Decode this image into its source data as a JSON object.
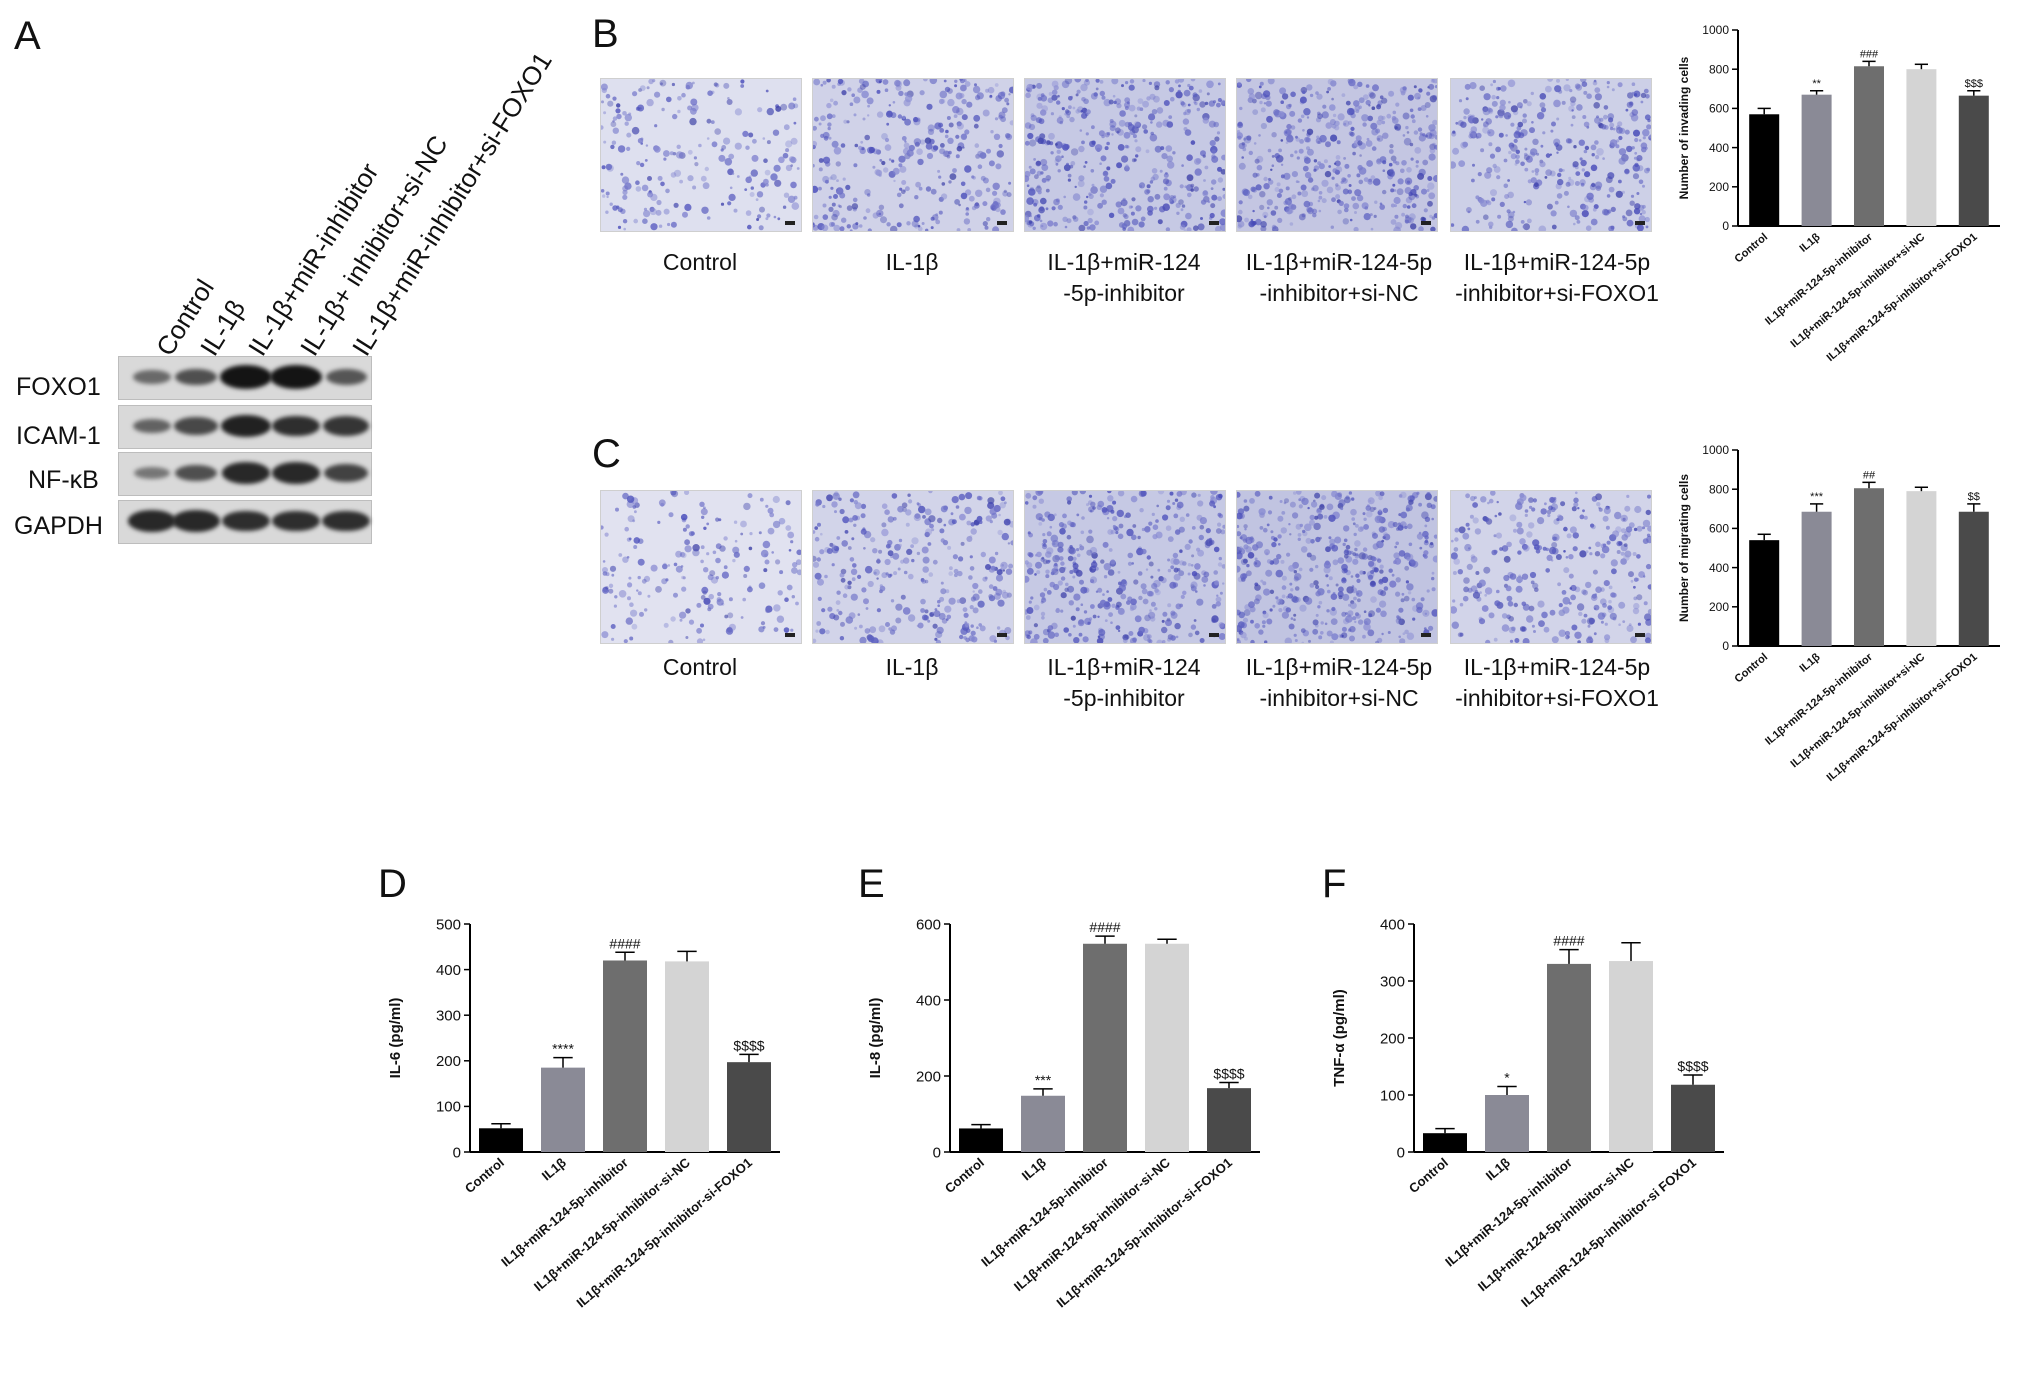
{
  "panels": {
    "A": "A",
    "B": "B",
    "C": "C",
    "D": "D",
    "E": "E",
    "F": "F"
  },
  "western_blot": {
    "lanes": [
      "Control",
      "IL-1β",
      "IL-1β+miR-inhibitor",
      "IL-1β+ inhibitor+si-NC",
      "IL-1β+miR-inhibitor+si-FOXO1"
    ],
    "proteins": [
      "FOXO1",
      "ICAM-1",
      "NF-κB",
      "GAPDH"
    ],
    "band_intensity": [
      [
        0.35,
        0.55,
        1.0,
        1.0,
        0.5
      ],
      [
        0.4,
        0.6,
        0.9,
        0.8,
        0.75
      ],
      [
        0.25,
        0.55,
        0.85,
        0.85,
        0.65
      ],
      [
        0.85,
        0.85,
        0.8,
        0.8,
        0.8
      ]
    ]
  },
  "micrograph_captions": [
    [
      "Control",
      ""
    ],
    [
      "IL-1β",
      ""
    ],
    [
      "IL-1β+miR-124",
      "-5p-inhibitor"
    ],
    [
      "IL-1β+miR-124-5p",
      "-inhibitor+si-NC"
    ],
    [
      "IL-1β+miR-124-5p",
      "-inhibitor+si-FOXO1"
    ]
  ],
  "micrograph_density": [
    0.25,
    0.55,
    0.75,
    0.8,
    0.6
  ],
  "micrograph_density_C": [
    0.2,
    0.5,
    0.75,
    0.85,
    0.5
  ],
  "chart_data": [
    {
      "id": "B",
      "type": "bar",
      "categories": [
        "Control",
        "IL1β",
        "IL1β+miR-124-5p-inhibitor",
        "IL1β+miR-124-5p-inhibitor+si-NC",
        "IL1β+miR-124-5p-inhibitor+si-FOXO1"
      ],
      "values": [
        570,
        670,
        815,
        800,
        665
      ],
      "errors": [
        30,
        20,
        25,
        25,
        25
      ],
      "annotations": [
        "",
        "**",
        "###",
        "",
        "$$$"
      ],
      "ylabel": "Number of invading cells",
      "ylim": [
        0,
        1000
      ],
      "yticks": [
        0,
        200,
        400,
        600,
        800,
        1000
      ],
      "colors": [
        "#000000",
        "#8a8a96",
        "#6e6e6e",
        "#d4d4d4",
        "#4a4a4a"
      ]
    },
    {
      "id": "C",
      "type": "bar",
      "categories": [
        "Control",
        "IL1β",
        "IL1β+miR-124-5p-inhibitor",
        "IL1β+miR-124-5p-inhibitor+si-NC",
        "IL1β+miR-124-5p-inhibitor+si-FOXO1"
      ],
      "values": [
        540,
        685,
        805,
        790,
        685
      ],
      "errors": [
        30,
        40,
        30,
        20,
        40
      ],
      "annotations": [
        "",
        "***",
        "##",
        "",
        "$$"
      ],
      "ylabel": "Number of migrating cells",
      "ylim": [
        0,
        1000
      ],
      "yticks": [
        0,
        200,
        400,
        600,
        800,
        1000
      ],
      "colors": [
        "#000000",
        "#8a8a96",
        "#6e6e6e",
        "#d4d4d4",
        "#4a4a4a"
      ]
    },
    {
      "id": "D",
      "type": "bar",
      "categories": [
        "Control",
        "IL1β",
        "IL1β+miR-124-5p-inhibitor",
        "IL1β+miR-124-5p-inhibitor-si-NC",
        "IL1β+miR-124-5p-inhibitor-si-FOXO1"
      ],
      "values": [
        52,
        185,
        420,
        418,
        197
      ],
      "errors": [
        10,
        22,
        18,
        22,
        17
      ],
      "annotations": [
        "",
        "****",
        "####",
        "",
        "$$$$"
      ],
      "ylabel": "IL-6 (pg/ml)",
      "ylim": [
        0,
        500
      ],
      "yticks": [
        0,
        100,
        200,
        300,
        400,
        500
      ],
      "colors": [
        "#000000",
        "#8a8a96",
        "#6e6e6e",
        "#d4d4d4",
        "#4a4a4a"
      ]
    },
    {
      "id": "E",
      "type": "bar",
      "categories": [
        "Control",
        "IL1β",
        "IL1β+miR-124-5p-inhibitor",
        "IL1β+miR-124-5p-inhibitor-si-NC",
        "IL1β+miR-124-5p-inhibitor-si-FOXO1"
      ],
      "values": [
        62,
        148,
        548,
        548,
        168
      ],
      "errors": [
        10,
        18,
        20,
        12,
        15
      ],
      "annotations": [
        "",
        "***",
        "####",
        "",
        "$$$$"
      ],
      "ylabel": "IL-8 (pg/ml)",
      "ylim": [
        0,
        600
      ],
      "yticks": [
        0,
        200,
        400,
        600
      ],
      "colors": [
        "#000000",
        "#8a8a96",
        "#6e6e6e",
        "#d4d4d4",
        "#4a4a4a"
      ]
    },
    {
      "id": "F",
      "type": "bar",
      "categories": [
        "Control",
        "IL1β",
        "IL1β+miR-124-5p-inhibitor",
        "IL1β+miR-124-5p-inhibitor-si-NC",
        "IL1β+miR-124-5p-inhibitor-si FOXO1"
      ],
      "values": [
        33,
        100,
        330,
        335,
        118
      ],
      "errors": [
        8,
        15,
        25,
        32,
        17
      ],
      "annotations": [
        "",
        "*",
        "####",
        "",
        "$$$$"
      ],
      "ylabel": "TNF-α (pg/ml)",
      "ylim": [
        0,
        400
      ],
      "yticks": [
        0,
        100,
        200,
        300,
        400
      ],
      "colors": [
        "#000000",
        "#8a8a96",
        "#6e6e6e",
        "#d4d4d4",
        "#4a4a4a"
      ]
    }
  ]
}
